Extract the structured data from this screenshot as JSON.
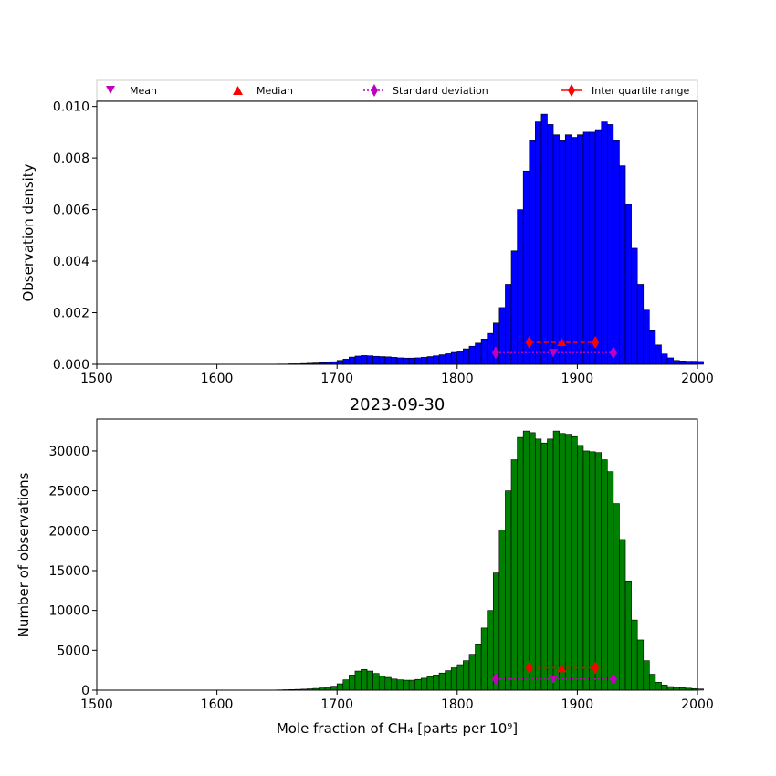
{
  "legend": {
    "items": [
      {
        "label": "Mean",
        "marker": "triangle-down",
        "color": "#bf00bf"
      },
      {
        "label": "Median",
        "marker": "triangle-up",
        "color": "#ff0000"
      },
      {
        "label": "Standard deviation",
        "marker": "diamond",
        "line": "dotted",
        "color": "#bf00bf"
      },
      {
        "label": "Inter quartile range",
        "marker": "diamond",
        "line": "solid",
        "color": "#ff0000"
      }
    ]
  },
  "chart_data": [
    {
      "type": "bar",
      "title": "",
      "xlabel": "",
      "ylabel": "Observation density",
      "xlim": [
        1500,
        2000
      ],
      "ylim": [
        0,
        0.0102
      ],
      "xticks": [
        1500,
        1600,
        1700,
        1800,
        1900,
        2000
      ],
      "xtick_labels": [
        "1500",
        "1600",
        "1700",
        "1800",
        "1900",
        "2000"
      ],
      "yticks": [
        0,
        0.002,
        0.004,
        0.006,
        0.008,
        0.01
      ],
      "ytick_labels": [
        "0.000",
        "0.002",
        "0.004",
        "0.006",
        "0.008",
        "0.010"
      ],
      "bar_color": "#0000ff",
      "bin_start": 1650,
      "bin_width": 5,
      "values": [
        1e-05,
        1e-05,
        2e-05,
        2e-05,
        3e-05,
        4e-05,
        5e-05,
        6e-05,
        7e-05,
        0.0001,
        0.00015,
        0.0002,
        0.00028,
        0.00032,
        0.00034,
        0.00033,
        0.00031,
        0.0003,
        0.00029,
        0.00027,
        0.00025,
        0.00024,
        0.00024,
        0.00025,
        0.00027,
        0.0003,
        0.00033,
        0.00037,
        0.00041,
        0.00046,
        0.00052,
        0.0006,
        0.0007,
        0.00082,
        0.00098,
        0.0012,
        0.0016,
        0.0022,
        0.0031,
        0.0044,
        0.006,
        0.0075,
        0.0087,
        0.0094,
        0.0097,
        0.0093,
        0.0089,
        0.0087,
        0.0089,
        0.0088,
        0.0089,
        0.009,
        0.009,
        0.0091,
        0.0094,
        0.0093,
        0.0087,
        0.0077,
        0.0062,
        0.0045,
        0.0031,
        0.0021,
        0.0013,
        0.00075,
        0.0004,
        0.00025,
        0.00015,
        0.00013,
        0.00012,
        0.00012,
        0.00011
      ],
      "stats": {
        "mean": 1880,
        "median": 1887,
        "q1": 1860,
        "q3": 1915,
        "std_low": 1832,
        "std_high": 1930,
        "iqr_y": 0.00085,
        "mean_y": 0.00045,
        "std_y": 0.00045,
        "median_y": 0.00085
      }
    },
    {
      "type": "bar",
      "title": "2023-09-30",
      "xlabel": "Mole fraction of CH₄ [parts per 10⁹]",
      "ylabel": "Number of observations",
      "xlim": [
        1500,
        2000
      ],
      "ylim": [
        0,
        34000
      ],
      "xticks": [
        1500,
        1600,
        1700,
        1800,
        1900,
        2000
      ],
      "xtick_labels": [
        "1500",
        "1600",
        "1700",
        "1800",
        "1900",
        "2000"
      ],
      "yticks": [
        0,
        5000,
        10000,
        15000,
        20000,
        25000,
        30000
      ],
      "ytick_labels": [
        "0",
        "5000",
        "10000",
        "15000",
        "20000",
        "25000",
        "30000"
      ],
      "bar_color": "#008000",
      "bin_start": 1650,
      "bin_width": 5,
      "values": [
        40,
        60,
        80,
        100,
        130,
        170,
        220,
        280,
        350,
        500,
        800,
        1300,
        1900,
        2400,
        2600,
        2400,
        2100,
        1800,
        1600,
        1400,
        1300,
        1250,
        1250,
        1350,
        1500,
        1700,
        1900,
        2150,
        2450,
        2800,
        3200,
        3700,
        4500,
        5800,
        7800,
        10000,
        14700,
        20100,
        25000,
        28900,
        31700,
        32500,
        32300,
        31500,
        31000,
        31500,
        32500,
        32200,
        32100,
        31800,
        30700,
        30000,
        29900,
        29800,
        28900,
        27400,
        23400,
        18900,
        13700,
        8800,
        6300,
        3700,
        2000,
        1000,
        650,
        450,
        350,
        300,
        250,
        200,
        150
      ],
      "stats": {
        "mean": 1880,
        "median": 1887,
        "q1": 1860,
        "q3": 1915,
        "std_low": 1832,
        "std_high": 1930,
        "iqr_y": 2800,
        "mean_y": 1400,
        "std_y": 1400,
        "median_y": 2700
      }
    }
  ]
}
